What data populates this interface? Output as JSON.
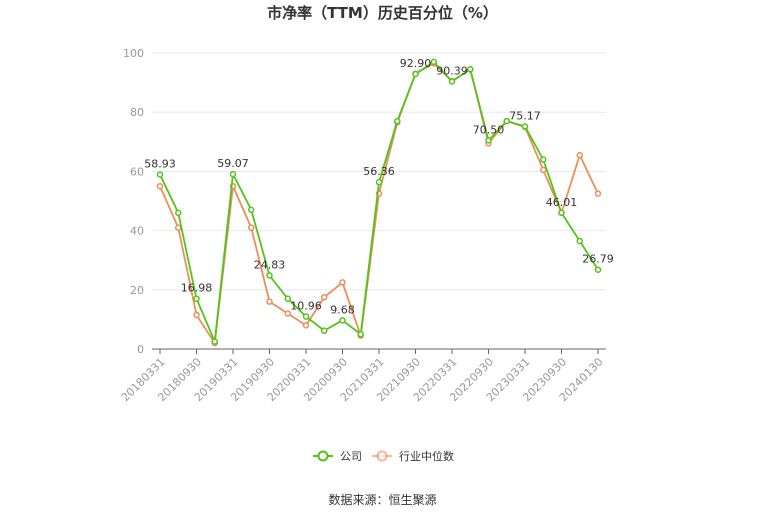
{
  "chart_data": {
    "type": "line",
    "title": "市净率（TTM）历史百分位（%）",
    "ylim": [
      0,
      100
    ],
    "yticks": [
      0,
      20,
      40,
      60,
      80,
      100
    ],
    "x": [
      "20180331",
      "20180630",
      "20180930",
      "20181231",
      "20190331",
      "20190630",
      "20190930",
      "20191231",
      "20200331",
      "20200630",
      "20200930",
      "20201231",
      "20210331",
      "20210630",
      "20210930",
      "20211231",
      "20220331",
      "20220630",
      "20220930",
      "20221231",
      "20230331",
      "20230630",
      "20230930",
      "20231231",
      "20240130"
    ],
    "xtick_labels": [
      "20180331",
      "20180930",
      "20190331",
      "20190930",
      "20200331",
      "20200930",
      "20210331",
      "20210930",
      "20220331",
      "20220930",
      "20230331",
      "20230930",
      "20240130"
    ],
    "series": [
      {
        "name": "公司",
        "color": "#52c41a",
        "values": [
          58.93,
          46.0,
          16.98,
          2.5,
          59.07,
          47.0,
          24.83,
          17.0,
          10.96,
          6.2,
          9.68,
          5.0,
          56.36,
          77.0,
          92.9,
          97.0,
          90.39,
          94.5,
          70.5,
          77.0,
          75.17,
          64.0,
          46.01,
          36.5,
          26.79
        ]
      },
      {
        "name": "行业中位数",
        "color": "#f08c5a",
        "values": [
          55.0,
          41.0,
          11.5,
          2.0,
          55.0,
          41.0,
          16.0,
          12.0,
          8.0,
          17.5,
          22.5,
          4.5,
          52.5,
          76.5,
          93.0,
          96.5,
          90.5,
          94.5,
          69.5,
          77.0,
          75.0,
          60.5,
          46.0,
          65.5,
          52.5
        ]
      }
    ],
    "data_labels": [
      {
        "series": 0,
        "index": 0,
        "text": "58.93"
      },
      {
        "series": 0,
        "index": 2,
        "text": "16.98"
      },
      {
        "series": 0,
        "index": 4,
        "text": "59.07"
      },
      {
        "series": 0,
        "index": 6,
        "text": "24.83"
      },
      {
        "series": 0,
        "index": 8,
        "text": "10.96"
      },
      {
        "series": 0,
        "index": 10,
        "text": "9.68"
      },
      {
        "series": 0,
        "index": 12,
        "text": "56.36"
      },
      {
        "series": 0,
        "index": 14,
        "text": "92.90"
      },
      {
        "series": 0,
        "index": 16,
        "text": "90.39"
      },
      {
        "series": 0,
        "index": 18,
        "text": "70.50"
      },
      {
        "series": 0,
        "index": 20,
        "text": "75.17"
      },
      {
        "series": 0,
        "index": 22,
        "text": "46.01"
      },
      {
        "series": 0,
        "index": 24,
        "text": "26.79"
      }
    ],
    "legend": {
      "position": "bottom",
      "items": [
        "公司",
        "行业中位数"
      ]
    },
    "grid": true
  },
  "source": "数据来源：恒生聚源"
}
